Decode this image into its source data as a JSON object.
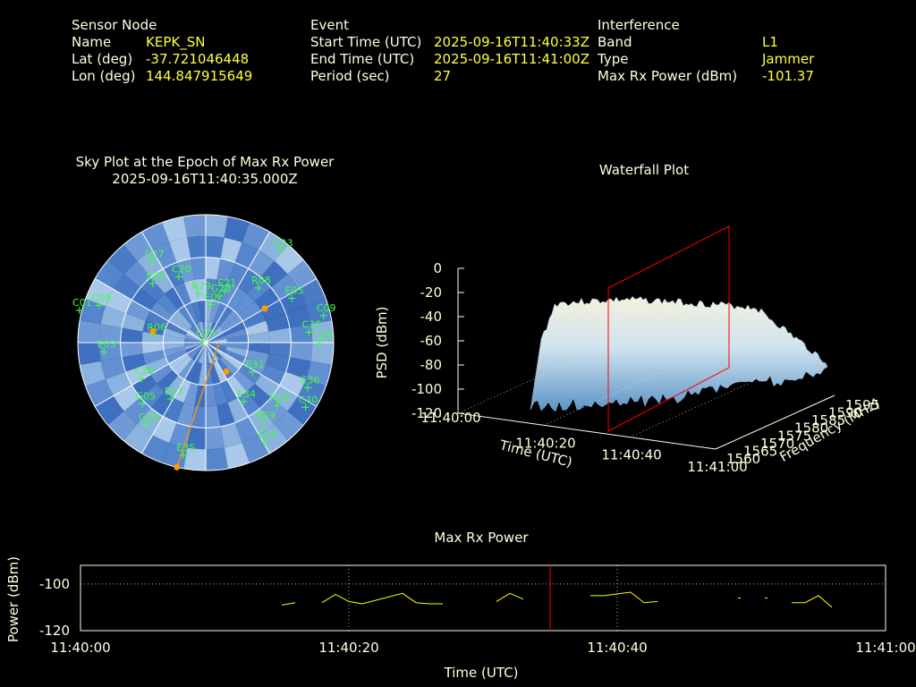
{
  "header": {
    "node": {
      "heading": "Sensor Node",
      "rows": [
        [
          "Name",
          "KEPK_SN"
        ],
        [
          "Lat (deg)",
          "-37.721046448"
        ],
        [
          "Lon (deg)",
          "144.847915649"
        ]
      ]
    },
    "event": {
      "heading": "Event",
      "rows": [
        [
          "Start Time (UTC)",
          "2025-09-16T11:40:33Z"
        ],
        [
          "End Time (UTC)",
          "2025-09-16T11:41:00Z"
        ],
        [
          "Period (sec)",
          "27"
        ]
      ]
    },
    "interference": {
      "heading": "Interference",
      "rows": [
        [
          "Band",
          "L1"
        ],
        [
          "Type",
          "Jammer"
        ],
        [
          "Max Rx Power (dBm)",
          "-101.37"
        ]
      ]
    }
  },
  "colors": {
    "label": "#ffffe0",
    "value": "#ffff40",
    "sat": "#40ff40",
    "marker": "#ff9a00",
    "event": "#ff0000",
    "line": "#ffff00"
  },
  "chart_data": [
    {
      "type": "scatter",
      "title": "Sky Plot at the Epoch of Max Rx Power",
      "subtitle": "2025-09-16T11:40:35.000Z",
      "satellites": [
        {
          "name": "C39",
          "az": 0,
          "el": 88
        },
        {
          "name": "E02",
          "az": 12,
          "el": 62
        },
        {
          "name": "G28",
          "az": 18,
          "el": 55
        },
        {
          "name": "E21",
          "az": 22,
          "el": 50
        },
        {
          "name": "C23",
          "az": 40,
          "el": 5
        },
        {
          "name": "R08",
          "az": 45,
          "el": 35
        },
        {
          "name": "E05",
          "az": 63,
          "el": 20
        },
        {
          "name": "C09",
          "az": 77,
          "el": 3
        },
        {
          "name": "C30",
          "az": 84,
          "el": 15
        },
        {
          "name": "C28",
          "az": 90,
          "el": 8
        },
        {
          "name": "E36",
          "az": 113,
          "el": 10
        },
        {
          "name": "E31",
          "az": 120,
          "el": 50
        },
        {
          "name": "C40",
          "az": 122,
          "el": 5
        },
        {
          "name": "R18",
          "az": 130,
          "el": 22
        },
        {
          "name": "E34",
          "az": 145,
          "el": 40
        },
        {
          "name": "R09",
          "az": 143,
          "el": 20
        },
        {
          "name": "E24",
          "az": 148,
          "el": 8
        },
        {
          "name": "E35",
          "az": 190,
          "el": 10
        },
        {
          "name": "G29",
          "az": 215,
          "el": 20
        },
        {
          "name": "G05",
          "az": 225,
          "el": 30
        },
        {
          "name": "E13",
          "az": 210,
          "el": 45
        },
        {
          "name": "C38",
          "az": 240,
          "el": 40
        },
        {
          "name": "E03",
          "az": 265,
          "el": 20
        },
        {
          "name": "R06",
          "az": 280,
          "el": 55
        },
        {
          "name": "C01",
          "az": 285,
          "el": 0
        },
        {
          "name": "C08",
          "az": 290,
          "el": 12
        },
        {
          "name": "E30",
          "az": 320,
          "el": 35
        },
        {
          "name": "C27",
          "az": 328,
          "el": 22
        },
        {
          "name": "C20",
          "az": 340,
          "el": 40
        },
        {
          "name": "R29",
          "az": 355,
          "el": 55
        }
      ],
      "markers": [
        {
          "az": 60,
          "el": 42
        },
        {
          "az": 282,
          "el": 52
        },
        {
          "az": 145,
          "el": 65
        },
        {
          "az": 193,
          "el": 0
        }
      ]
    },
    {
      "type": "area",
      "title": "Waterfall Plot",
      "xlabel": "Time (UTC)",
      "ylabel": "Frequency (MHz)",
      "zlabel": "PSD (dBm)",
      "x_ticks": [
        "11:40:00",
        "11:40:20",
        "11:40:40",
        "11:41:00"
      ],
      "y_ticks": [
        "1560",
        "1565",
        "1570",
        "1575",
        "1580",
        "1585",
        "1590",
        "1595"
      ],
      "z_ticks": [
        "0",
        "-20",
        "-40",
        "-60",
        "-80",
        "-100",
        "-120"
      ],
      "zlim": [
        -120,
        0
      ]
    },
    {
      "type": "line",
      "title": "Max Rx Power",
      "xlabel": "Time (UTC)",
      "ylabel": "Power (dBm)",
      "x_ticks": [
        "11:40:00",
        "11:40:20",
        "11:40:40",
        "11:41:00"
      ],
      "y_ticks": [
        "-100",
        "-120"
      ],
      "xlim": [
        0,
        60
      ],
      "ylim": [
        -120,
        -92
      ],
      "event_marker_sec": 35,
      "series": [
        {
          "values": [
            [
              15,
              -109
            ],
            [
              16,
              -108
            ]
          ]
        },
        {
          "values": [
            [
              18,
              -108
            ],
            [
              19,
              -104.5
            ],
            [
              20,
              -107.5
            ],
            [
              21,
              -108.5
            ],
            [
              24,
              -104
            ],
            [
              25,
              -108
            ],
            [
              26,
              -108.5
            ],
            [
              27,
              -108.5
            ]
          ]
        },
        {
          "values": [
            [
              31,
              -107.5
            ],
            [
              32,
              -104
            ],
            [
              33,
              -106.5
            ]
          ]
        },
        {
          "values": [
            [
              38,
              -105
            ],
            [
              39,
              -105
            ],
            [
              41,
              -103.5
            ],
            [
              42,
              -108
            ],
            [
              43,
              -107.5
            ]
          ]
        },
        {
          "values": [
            [
              49,
              -106
            ],
            [
              49.2,
              -106
            ]
          ]
        },
        {
          "values": [
            [
              51,
              -106
            ],
            [
              51.2,
              -106
            ]
          ]
        },
        {
          "values": [
            [
              53,
              -108
            ],
            [
              54,
              -108
            ],
            [
              55,
              -105
            ],
            [
              56,
              -110
            ]
          ]
        }
      ]
    }
  ]
}
